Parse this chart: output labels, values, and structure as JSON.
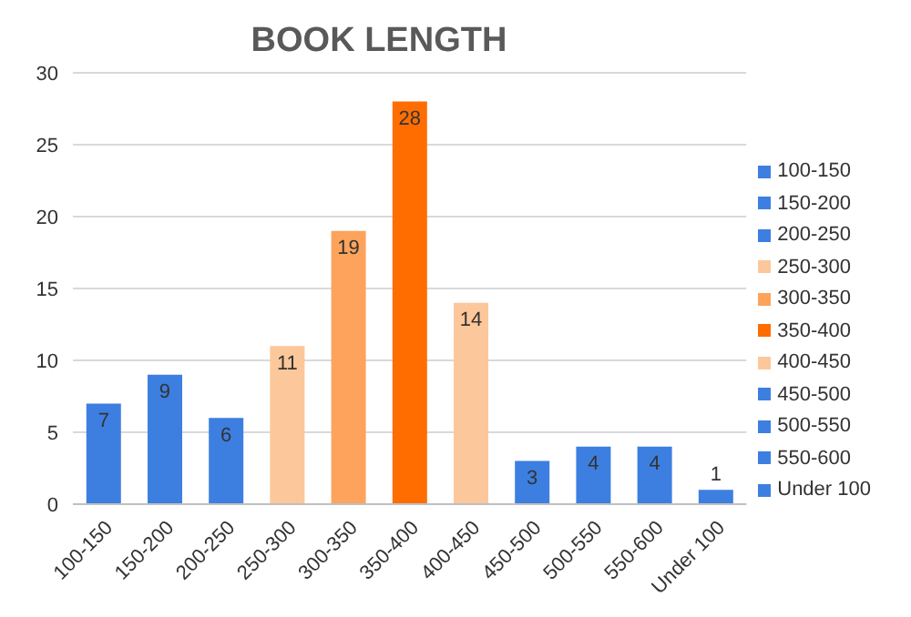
{
  "chart_data": {
    "type": "bar",
    "title": "BOOK LENGTH",
    "categories": [
      "100-150",
      "150-200",
      "200-250",
      "250-300",
      "300-350",
      "350-400",
      "400-450",
      "450-500",
      "500-550",
      "550-600",
      "Under 100"
    ],
    "series": [
      {
        "name": "100-150",
        "color": "#3d7fe0",
        "values": [
          7,
          null,
          null,
          null,
          null,
          null,
          null,
          null,
          null,
          null,
          null
        ]
      },
      {
        "name": "150-200",
        "color": "#3d7fe0",
        "values": [
          null,
          9,
          null,
          null,
          null,
          null,
          null,
          null,
          null,
          null,
          null
        ]
      },
      {
        "name": "200-250",
        "color": "#3d7fe0",
        "values": [
          null,
          null,
          6,
          null,
          null,
          null,
          null,
          null,
          null,
          null,
          null
        ]
      },
      {
        "name": "250-300",
        "color": "#fcc79a",
        "values": [
          null,
          null,
          null,
          11,
          null,
          null,
          null,
          null,
          null,
          null,
          null
        ]
      },
      {
        "name": "300-350",
        "color": "#fda35c",
        "values": [
          null,
          null,
          null,
          null,
          19,
          null,
          null,
          null,
          null,
          null,
          null
        ]
      },
      {
        "name": "350-400",
        "color": "#ff6d01",
        "values": [
          null,
          null,
          null,
          null,
          null,
          28,
          null,
          null,
          null,
          null,
          null
        ]
      },
      {
        "name": "400-450",
        "color": "#fcc79a",
        "values": [
          null,
          null,
          null,
          null,
          null,
          null,
          14,
          null,
          null,
          null,
          null
        ]
      },
      {
        "name": "450-500",
        "color": "#3d7fe0",
        "values": [
          null,
          null,
          null,
          null,
          null,
          null,
          null,
          3,
          null,
          null,
          null
        ]
      },
      {
        "name": "500-550",
        "color": "#3d7fe0",
        "values": [
          null,
          null,
          null,
          null,
          null,
          null,
          null,
          null,
          4,
          null,
          null
        ]
      },
      {
        "name": "550-600",
        "color": "#3d7fe0",
        "values": [
          null,
          null,
          null,
          null,
          null,
          null,
          null,
          null,
          null,
          4,
          null
        ]
      },
      {
        "name": "Under 100",
        "color": "#3d7fe0",
        "values": [
          null,
          null,
          null,
          null,
          null,
          null,
          null,
          null,
          null,
          null,
          1
        ]
      }
    ],
    "stacked": true,
    "ylim": [
      0,
      30
    ],
    "yticks": [
      0,
      5,
      10,
      15,
      20,
      25,
      30
    ],
    "grid": "y",
    "legend": "right",
    "data_labels": true
  }
}
